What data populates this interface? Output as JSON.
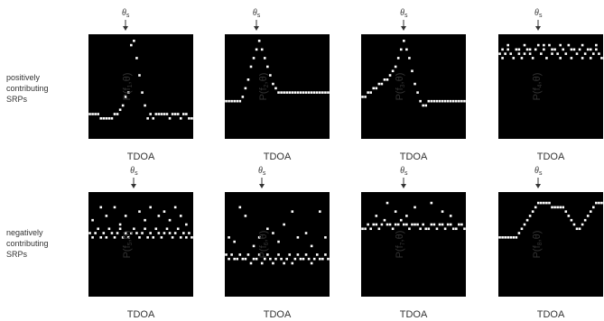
{
  "row_labels": {
    "positive": [
      "positively",
      "contributing",
      "SRPs"
    ],
    "negative": [
      "negatively",
      "contributing",
      "SRPs"
    ]
  },
  "theta_label": {
    "base": "θ",
    "sub": "s"
  },
  "x_axis_label": "TDOA",
  "panels": [
    {
      "y_prefix": "P(f",
      "y_index": "1",
      "y_suffix": ",θ)",
      "row": 0,
      "col": 0,
      "source_col": 13,
      "levels": [
        17,
        17,
        17,
        17,
        18,
        18,
        18,
        18,
        18,
        17,
        17,
        16,
        15,
        13,
        12,
        1,
        0,
        4,
        8,
        12,
        15,
        18,
        17,
        18,
        17,
        17,
        17,
        17,
        17,
        18,
        17,
        17,
        17,
        18,
        17,
        17,
        18,
        18
      ]
    },
    {
      "y_prefix": "P(f",
      "y_index": "2",
      "y_suffix": ",θ)",
      "row": 0,
      "col": 1,
      "source_col": 11,
      "levels": [
        14,
        14,
        14,
        14,
        14,
        14,
        13,
        11,
        9,
        6,
        4,
        2,
        0,
        2,
        4,
        6,
        8,
        10,
        11,
        12,
        12,
        12,
        12,
        12,
        12,
        12,
        12,
        12,
        12,
        12,
        12,
        12,
        12,
        12,
        12,
        12,
        12,
        12
      ]
    },
    {
      "y_prefix": "P(f",
      "y_index": "3",
      "y_suffix": ",θ)",
      "row": 0,
      "col": 2,
      "source_col": 15,
      "levels": [
        13,
        13,
        12,
        12,
        11,
        11,
        10,
        10,
        9,
        9,
        8,
        7,
        6,
        4,
        2,
        0,
        2,
        4,
        7,
        10,
        12,
        14,
        15,
        15,
        14,
        14,
        14,
        14,
        14,
        14,
        14,
        14,
        14,
        14,
        14,
        14,
        14,
        14
      ]
    },
    {
      "y_prefix": "P(f",
      "y_index": "4",
      "y_suffix": ",θ)",
      "row": 0,
      "col": 3,
      "source_col": 14,
      "levels": [
        3,
        4,
        3,
        2,
        3,
        4,
        2,
        3,
        4,
        3,
        2,
        3,
        4,
        2,
        1,
        3,
        2,
        4,
        1,
        3,
        2,
        3,
        4,
        2,
        3,
        1,
        4,
        2,
        3,
        2,
        4,
        3,
        2,
        4,
        3,
        2,
        3,
        4
      ],
      "noise": [
        [
          1,
          2
        ],
        [
          3,
          1
        ],
        [
          7,
          2
        ],
        [
          9,
          1
        ],
        [
          11,
          2
        ],
        [
          16,
          1
        ],
        [
          19,
          2
        ],
        [
          22,
          1
        ],
        [
          26,
          2
        ],
        [
          30,
          1
        ],
        [
          33,
          2
        ],
        [
          35,
          1
        ]
      ]
    },
    {
      "y_prefix": "P(f",
      "y_index": "5",
      "y_suffix": ",θ)",
      "row": 1,
      "col": 0,
      "source_col": 16,
      "levels": [
        8,
        9,
        8,
        7,
        9,
        8,
        9,
        7,
        8,
        9,
        8,
        7,
        9,
        8,
        9,
        8,
        7,
        8,
        9,
        8,
        7,
        9,
        8,
        9,
        7,
        8,
        9,
        8,
        7,
        8,
        9,
        8,
        7,
        9,
        8,
        9,
        8,
        9
      ],
      "noise": [
        [
          1,
          5
        ],
        [
          4,
          2
        ],
        [
          6,
          4
        ],
        [
          9,
          2
        ],
        [
          11,
          6
        ],
        [
          13,
          4
        ],
        [
          18,
          3
        ],
        [
          20,
          5
        ],
        [
          22,
          2
        ],
        [
          25,
          4
        ],
        [
          27,
          3
        ],
        [
          29,
          5
        ],
        [
          31,
          2
        ],
        [
          33,
          4
        ],
        [
          35,
          6
        ]
      ]
    },
    {
      "y_prefix": "P(f",
      "y_index": "6",
      "y_suffix": ",θ)",
      "row": 1,
      "col": 1,
      "source_col": 13,
      "levels": [
        13,
        14,
        13,
        14,
        14,
        13,
        14,
        14,
        13,
        15,
        14,
        14,
        13,
        15,
        14,
        13,
        14,
        15,
        14,
        13,
        14,
        15,
        14,
        13,
        15,
        14,
        13,
        14,
        14,
        13,
        14,
        15,
        14,
        13,
        14,
        14,
        13,
        14
      ],
      "noise": [
        [
          1,
          9
        ],
        [
          3,
          10
        ],
        [
          5,
          2
        ],
        [
          7,
          4
        ],
        [
          10,
          11
        ],
        [
          12,
          9
        ],
        [
          15,
          7
        ],
        [
          17,
          8
        ],
        [
          19,
          10
        ],
        [
          21,
          6
        ],
        [
          24,
          3
        ],
        [
          26,
          9
        ],
        [
          29,
          8
        ],
        [
          31,
          11
        ],
        [
          34,
          3
        ],
        [
          36,
          9
        ]
      ]
    },
    {
      "y_prefix": "P(f",
      "y_index": "7",
      "y_suffix": ",θ)",
      "row": 1,
      "col": 2,
      "source_col": 15,
      "levels": [
        7,
        7,
        6,
        7,
        6,
        6,
        7,
        6,
        5,
        6,
        6,
        7,
        6,
        6,
        5,
        6,
        6,
        7,
        6,
        6,
        6,
        7,
        6,
        7,
        7,
        6,
        6,
        7,
        6,
        6,
        7,
        6,
        6,
        7,
        7,
        6,
        6,
        7
      ],
      "noise": [
        [
          5,
          4
        ],
        [
          9,
          1
        ],
        [
          12,
          3
        ],
        [
          16,
          4
        ],
        [
          19,
          2
        ],
        [
          25,
          1
        ],
        [
          29,
          3
        ],
        [
          32,
          4
        ]
      ]
    },
    {
      "y_prefix": "P(f",
      "y_index": "8",
      "y_suffix": ",θ)",
      "row": 1,
      "col": 3,
      "source_col": 14,
      "levels": [
        9,
        9,
        9,
        9,
        9,
        9,
        9,
        8,
        7,
        6,
        5,
        4,
        3,
        2,
        1,
        1,
        1,
        1,
        1,
        2,
        2,
        2,
        2,
        2,
        3,
        4,
        5,
        6,
        7,
        7,
        6,
        5,
        4,
        3,
        2,
        1,
        1,
        1
      ]
    }
  ]
}
